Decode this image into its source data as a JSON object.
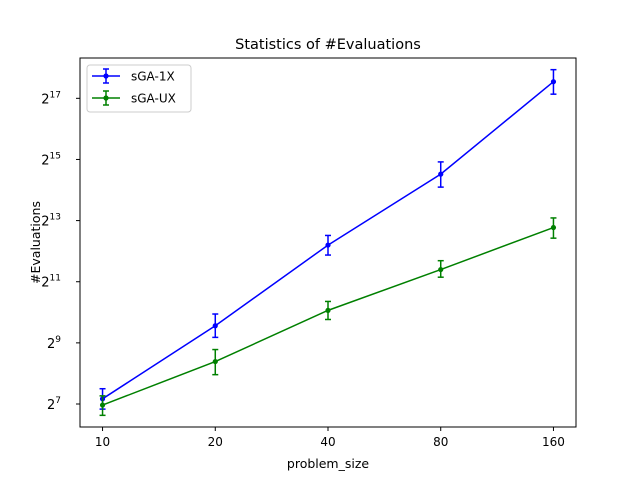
{
  "chart_data": {
    "type": "line",
    "title": "Statistics of #Evaluations",
    "xlabel": "problem_size",
    "ylabel": "#Evaluations",
    "x_scale": "log2",
    "y_scale": "log2",
    "x": [
      10,
      20,
      40,
      80,
      160
    ],
    "x_tick_labels": [
      "10",
      "20",
      "40",
      "80",
      "160"
    ],
    "y_tick_base": "2",
    "y_tick_exponents": [
      "7",
      "9",
      "11",
      "13",
      "15",
      "17"
    ],
    "ylim": [
      76,
      327000
    ],
    "legend_position": "upper-left",
    "grid": false,
    "series": [
      {
        "name": "sGA-1X",
        "color": "#0000ff",
        "values": [
          144,
          755,
          4700,
          23500,
          191000
        ],
        "err_low": [
          114,
          580,
          3750,
          17500,
          144000
        ],
        "err_high": [
          181,
          985,
          5850,
          31000,
          251000
        ]
      },
      {
        "name": "sGA-UX",
        "color": "#008000",
        "values": [
          125,
          335,
          1070,
          2700,
          7000
        ],
        "err_low": [
          99,
          249,
          870,
          2270,
          5500
        ],
        "err_high": [
          154,
          440,
          1310,
          3300,
          8700
        ]
      }
    ]
  }
}
